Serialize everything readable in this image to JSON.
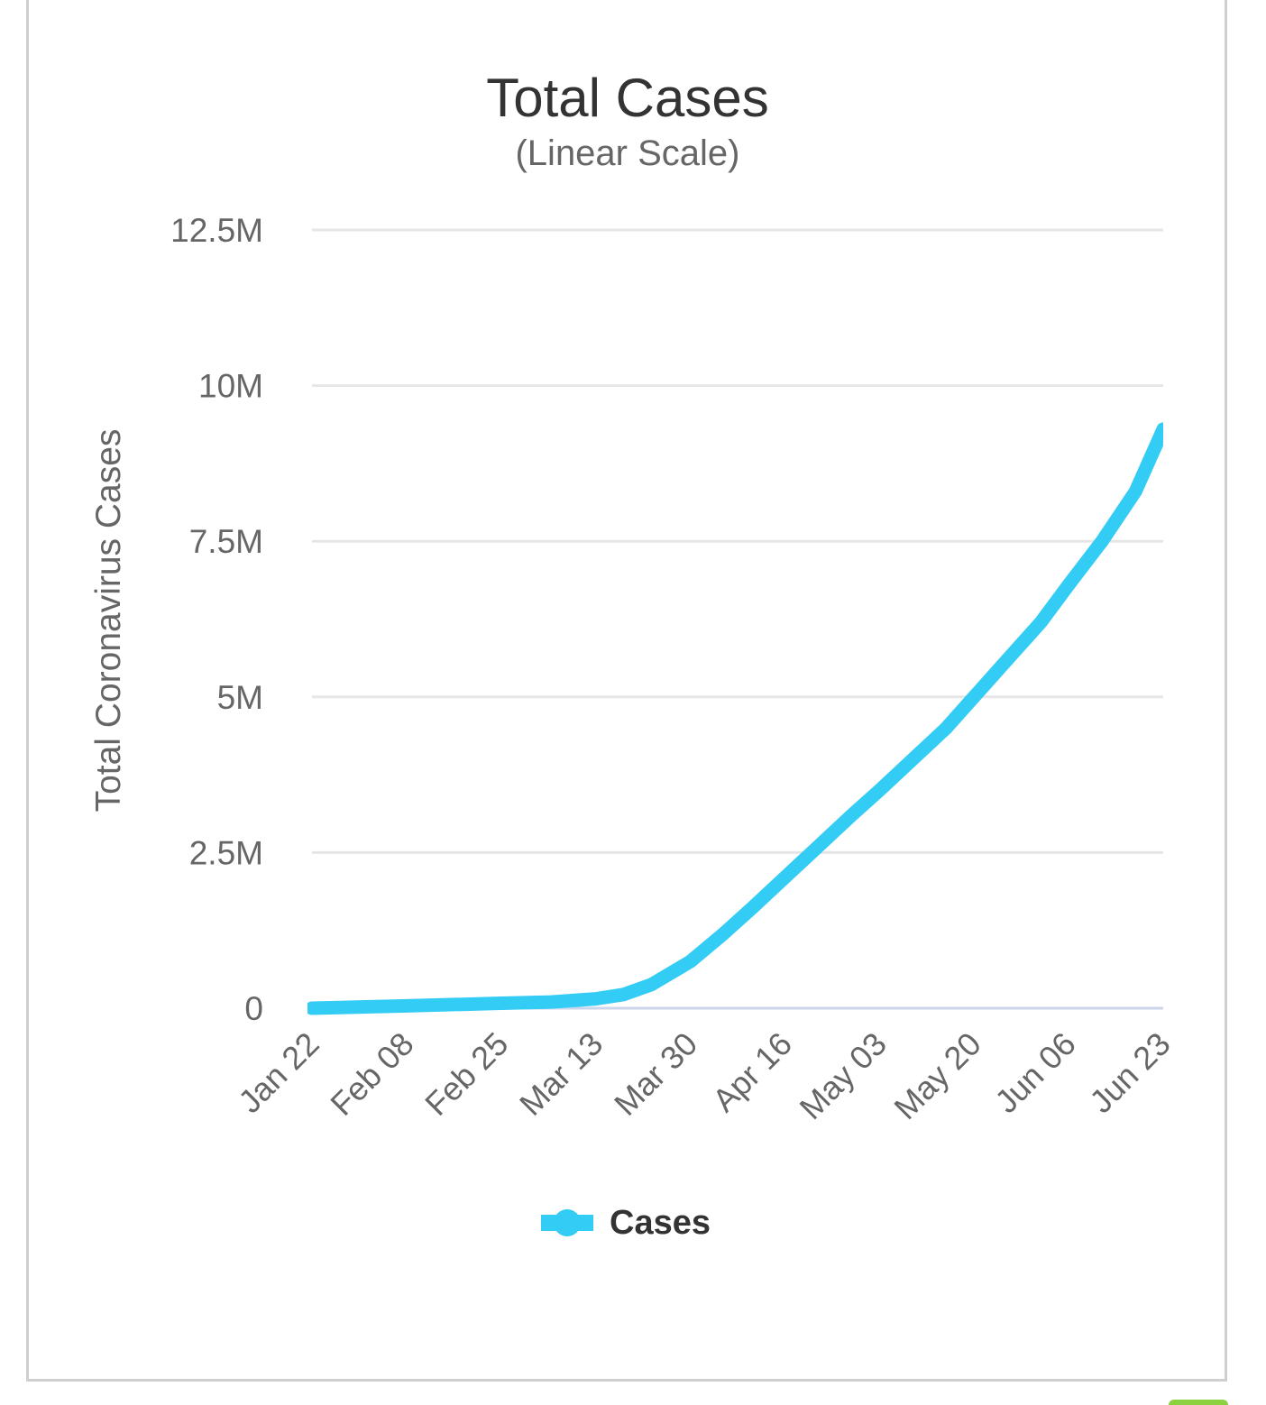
{
  "chart_data": {
    "type": "line",
    "title": "Total Cases",
    "subtitle": "(Linear Scale)",
    "ylabel": "Total Coronavirus Cases",
    "xlabel": "",
    "y_tick_labels": [
      "0",
      "2.5M",
      "5M",
      "7.5M",
      "10M",
      "12.5M"
    ],
    "ylim": [
      0,
      12500000
    ],
    "x_tick_labels": [
      "Jan 22",
      "Feb 08",
      "Feb 25",
      "Mar 13",
      "Mar 30",
      "Apr 16",
      "May 03",
      "May 20",
      "Jun 06",
      "Jun 23"
    ],
    "grid": true,
    "legend_position": "bottom-center",
    "series": [
      {
        "name": "Cases",
        "color": "#33ccf5",
        "x": [
          "Jan 22",
          "Feb 08",
          "Feb 25",
          "Mar 05",
          "Mar 13",
          "Mar 18",
          "Mar 23",
          "Mar 30",
          "Apr 05",
          "Apr 10",
          "Apr 16",
          "Apr 22",
          "Apr 28",
          "May 03",
          "May 09",
          "May 15",
          "May 20",
          "May 26",
          "Jun 01",
          "Jun 06",
          "Jun 12",
          "Jun 18",
          "Jun 23"
        ],
        "values": [
          600,
          37000,
          80000,
          100000,
          150000,
          220000,
          380000,
          750000,
          1200000,
          1600000,
          2100000,
          2600000,
          3100000,
          3500000,
          4000000,
          4500000,
          5000000,
          5600000,
          6200000,
          6800000,
          7500000,
          8300000,
          9300000
        ]
      }
    ]
  },
  "legend": {
    "label": "Cases",
    "symbol_icon": "line-marker-icon"
  },
  "colors": {
    "series": "#33ccf5",
    "grid": "#e6e6e6",
    "baseline": "#ccd6eb",
    "border": "#cfcfcf",
    "accent": "#33ccf5",
    "corner_tab": "#8cd13f"
  }
}
